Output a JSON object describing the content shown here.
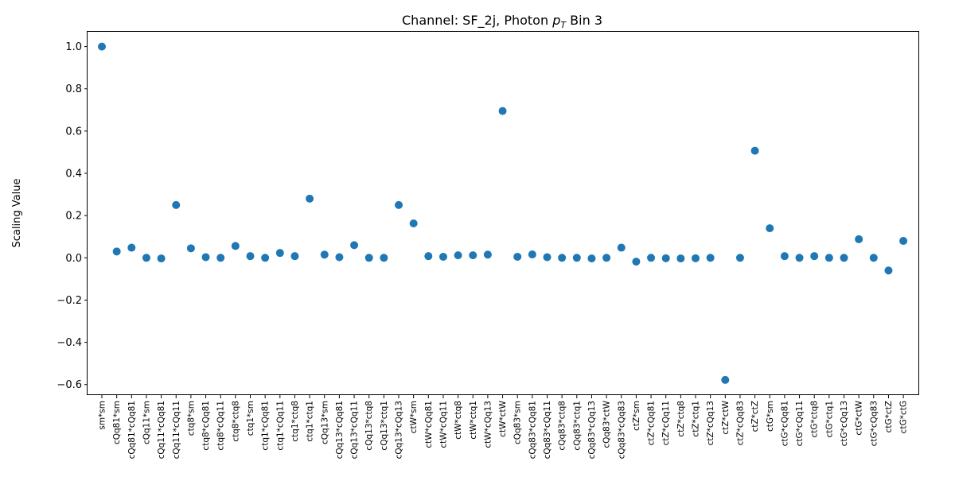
{
  "chart_data": {
    "type": "scatter",
    "title": "Channel: SF_2j, Photon $p_T$ Bin 3",
    "title_prefix": "Channel: SF_2j, Photon ",
    "title_italic": "p",
    "title_subscript": "T",
    "title_suffix": " Bin 3",
    "xlabel": "",
    "ylabel": "Scaling Value",
    "ylim": [
      -0.65,
      1.07
    ],
    "yticks": [
      -0.6,
      -0.4,
      -0.2,
      0.0,
      0.2,
      0.4,
      0.6,
      0.8,
      1.0
    ],
    "ytick_labels": [
      "−0.6",
      "−0.4",
      "−0.2",
      "0.0",
      "0.2",
      "0.4",
      "0.6",
      "0.8",
      "1.0"
    ],
    "grid": false,
    "marker_color": "#1f77b4",
    "categories": [
      "sm*sm",
      "cQq81*sm",
      "cQq81*cQq81",
      "cQq11*sm",
      "cQq11*cQq81",
      "cQq11*cQq11",
      "ctq8*sm",
      "ctq8*cQq81",
      "ctq8*cQq11",
      "ctq8*ctq8",
      "ctq1*sm",
      "ctq1*cQq81",
      "ctq1*cQq11",
      "ctq1*ctq8",
      "ctq1*ctq1",
      "cQq13*sm",
      "cQq13*cQq81",
      "cQq13*cQq11",
      "cQq13*ctq8",
      "cQq13*ctq1",
      "cQq13*cQq13",
      "ctW*sm",
      "ctW*cQq81",
      "ctW*cQq11",
      "ctW*ctq8",
      "ctW*ctq1",
      "ctW*cQq13",
      "ctW*ctW",
      "cQq83*sm",
      "cQq83*cQq81",
      "cQq83*cQq11",
      "cQq83*ctq8",
      "cQq83*ctq1",
      "cQq83*cQq13",
      "cQq83*ctW",
      "cQq83*cQq83",
      "ctZ*sm",
      "ctZ*cQq81",
      "ctZ*cQq11",
      "ctZ*ctq8",
      "ctZ*ctq1",
      "ctZ*cQq13",
      "ctZ*ctW",
      "ctZ*cQq83",
      "ctZ*ctZ",
      "ctG*sm",
      "ctG*cQq81",
      "ctG*cQq11",
      "ctG*ctq8",
      "ctG*ctq1",
      "ctG*cQq13",
      "ctG*ctW",
      "ctG*cQq83",
      "ctG*ctZ",
      "ctG*ctG"
    ],
    "values": [
      1.0,
      0.03,
      0.048,
      0.0,
      -0.003,
      0.25,
      0.045,
      0.003,
      0.0,
      0.056,
      0.008,
      0.0,
      0.023,
      0.008,
      0.28,
      0.015,
      0.003,
      0.06,
      0.0,
      0.0,
      0.25,
      0.163,
      0.008,
      0.005,
      0.012,
      0.012,
      0.015,
      0.695,
      0.005,
      0.016,
      0.003,
      0.0,
      0.0,
      -0.003,
      0.0,
      0.048,
      -0.018,
      0.0,
      -0.002,
      -0.003,
      -0.002,
      0.0,
      -0.578,
      0.0,
      0.507,
      0.14,
      0.008,
      0.0,
      0.008,
      0.0,
      0.0,
      0.088,
      0.0,
      -0.06,
      0.08
    ]
  }
}
